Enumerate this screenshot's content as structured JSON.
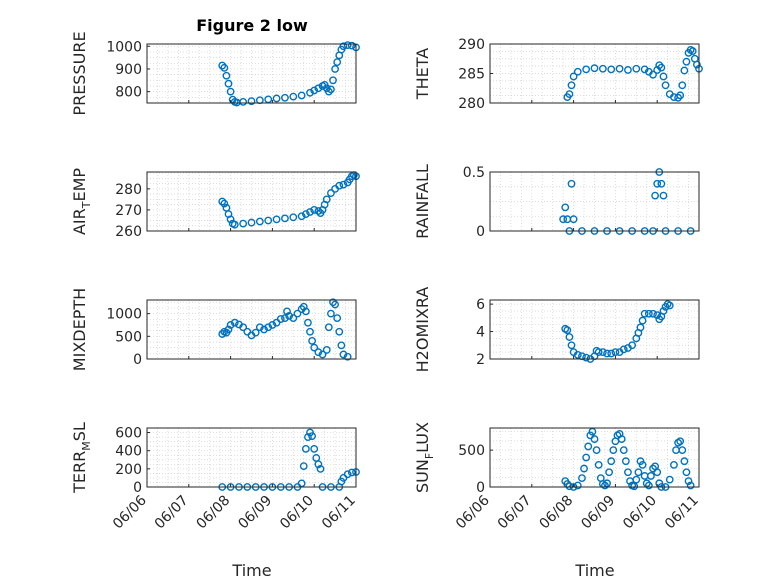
{
  "figure_title": "Figure 2 low",
  "x_tick_labels": [
    "06/06",
    "06/07",
    "06/08",
    "06/09",
    "06/10",
    "06/11"
  ],
  "x_label": "Time",
  "marker_color": "#0072BD",
  "chart_data": [
    {
      "type": "scatter",
      "id": "pressure",
      "ylabel": "PRESSURE",
      "yticks": [
        800,
        900,
        1000
      ],
      "ylim": [
        750,
        1010
      ],
      "xlim": [
        "06/06",
        "06/11"
      ],
      "grid": true,
      "points": [
        [
          1.8,
          915
        ],
        [
          1.85,
          905
        ],
        [
          1.9,
          870
        ],
        [
          1.95,
          835
        ],
        [
          2.0,
          800
        ],
        [
          2.05,
          765
        ],
        [
          2.1,
          755
        ],
        [
          2.15,
          752
        ],
        [
          2.3,
          755
        ],
        [
          2.5,
          758
        ],
        [
          2.7,
          762
        ],
        [
          2.9,
          766
        ],
        [
          3.1,
          770
        ],
        [
          3.3,
          773
        ],
        [
          3.5,
          778
        ],
        [
          3.7,
          783
        ],
        [
          3.9,
          795
        ],
        [
          4.0,
          805
        ],
        [
          4.1,
          815
        ],
        [
          4.2,
          825
        ],
        [
          4.25,
          830
        ],
        [
          4.3,
          815
        ],
        [
          4.35,
          800
        ],
        [
          4.4,
          810
        ],
        [
          4.45,
          850
        ],
        [
          4.5,
          900
        ],
        [
          4.55,
          930
        ],
        [
          4.6,
          960
        ],
        [
          4.65,
          985
        ],
        [
          4.7,
          1000
        ],
        [
          4.8,
          1005
        ],
        [
          4.9,
          1003
        ],
        [
          5.0,
          995
        ],
        [
          5.05,
          990
        ],
        [
          5.1,
          988
        ]
      ]
    },
    {
      "type": "scatter",
      "id": "theta",
      "ylabel": "THETA",
      "yticks": [
        280,
        285,
        290
      ],
      "ylim": [
        280,
        290
      ],
      "xlim": [
        "06/06",
        "06/11"
      ],
      "grid": true,
      "points": [
        [
          1.85,
          281
        ],
        [
          1.9,
          281.5
        ],
        [
          1.95,
          283
        ],
        [
          2.0,
          284.5
        ],
        [
          2.1,
          285.3
        ],
        [
          2.3,
          285.7
        ],
        [
          2.5,
          285.9
        ],
        [
          2.7,
          285.8
        ],
        [
          2.9,
          285.7
        ],
        [
          3.1,
          285.8
        ],
        [
          3.3,
          285.6
        ],
        [
          3.5,
          285.8
        ],
        [
          3.7,
          285.7
        ],
        [
          3.8,
          285.3
        ],
        [
          3.9,
          284.8
        ],
        [
          4.0,
          285.6
        ],
        [
          4.05,
          286.4
        ],
        [
          4.1,
          286
        ],
        [
          4.15,
          284.5
        ],
        [
          4.2,
          283
        ],
        [
          4.3,
          281.5
        ],
        [
          4.4,
          281
        ],
        [
          4.5,
          280.9
        ],
        [
          4.55,
          281.3
        ],
        [
          4.6,
          283
        ],
        [
          4.65,
          285.5
        ],
        [
          4.7,
          287
        ],
        [
          4.75,
          288.5
        ],
        [
          4.8,
          289
        ],
        [
          4.85,
          288.8
        ],
        [
          4.9,
          287.5
        ],
        [
          4.95,
          286.5
        ],
        [
          5.0,
          285.8
        ]
      ]
    },
    {
      "type": "scatter",
      "id": "air_temp",
      "ylabel": "AIR_TEMP",
      "yticks": [
        260,
        270,
        280
      ],
      "ylim": [
        260,
        288
      ],
      "xlim": [
        "06/06",
        "06/11"
      ],
      "grid": true,
      "points": [
        [
          1.8,
          274
        ],
        [
          1.85,
          273
        ],
        [
          1.9,
          271
        ],
        [
          1.95,
          268
        ],
        [
          2.0,
          265.5
        ],
        [
          2.05,
          263.5
        ],
        [
          2.1,
          263
        ],
        [
          2.3,
          263.5
        ],
        [
          2.5,
          264
        ],
        [
          2.7,
          264.5
        ],
        [
          2.9,
          265
        ],
        [
          3.1,
          265.5
        ],
        [
          3.3,
          266
        ],
        [
          3.5,
          266.5
        ],
        [
          3.7,
          267
        ],
        [
          3.8,
          268
        ],
        [
          3.9,
          269
        ],
        [
          4.0,
          270
        ],
        [
          4.1,
          269.5
        ],
        [
          4.15,
          268.5
        ],
        [
          4.2,
          270
        ],
        [
          4.25,
          272.5
        ],
        [
          4.3,
          275
        ],
        [
          4.4,
          278
        ],
        [
          4.5,
          280
        ],
        [
          4.6,
          281.5
        ],
        [
          4.7,
          282
        ],
        [
          4.8,
          283
        ],
        [
          4.85,
          284.5
        ],
        [
          4.9,
          286
        ],
        [
          4.95,
          286.5
        ],
        [
          5.0,
          286
        ],
        [
          5.05,
          285
        ]
      ]
    },
    {
      "type": "scatter",
      "id": "rainfall",
      "ylabel": "RAINFALL",
      "yticks": [
        0,
        0.5
      ],
      "ylim": [
        0,
        0.5
      ],
      "xlim": [
        "06/06",
        "06/11"
      ],
      "grid": true,
      "points": [
        [
          1.75,
          0.1
        ],
        [
          1.8,
          0.2
        ],
        [
          1.85,
          0.1
        ],
        [
          1.9,
          0
        ],
        [
          1.95,
          0.4
        ],
        [
          2.0,
          0.1
        ],
        [
          2.2,
          0
        ],
        [
          2.5,
          0
        ],
        [
          2.8,
          0
        ],
        [
          3.1,
          0
        ],
        [
          3.4,
          0
        ],
        [
          3.7,
          0
        ],
        [
          3.9,
          0
        ],
        [
          3.95,
          0.3
        ],
        [
          4.0,
          0.4
        ],
        [
          4.05,
          0.5
        ],
        [
          4.1,
          0.4
        ],
        [
          4.15,
          0.3
        ],
        [
          4.2,
          0
        ],
        [
          4.5,
          0
        ],
        [
          4.8,
          0
        ],
        [
          5.1,
          0
        ]
      ]
    },
    {
      "type": "scatter",
      "id": "mixdepth",
      "ylabel": "MIXDEPTH",
      "yticks": [
        0,
        500,
        1000
      ],
      "ylim": [
        0,
        1300
      ],
      "xlim": [
        "06/06",
        "06/11"
      ],
      "grid": true,
      "points": [
        [
          1.8,
          550
        ],
        [
          1.85,
          600
        ],
        [
          1.9,
          580
        ],
        [
          1.95,
          650
        ],
        [
          2.0,
          750
        ],
        [
          2.1,
          800
        ],
        [
          2.2,
          760
        ],
        [
          2.3,
          700
        ],
        [
          2.4,
          600
        ],
        [
          2.5,
          520
        ],
        [
          2.6,
          580
        ],
        [
          2.7,
          700
        ],
        [
          2.8,
          650
        ],
        [
          2.9,
          700
        ],
        [
          3.0,
          750
        ],
        [
          3.1,
          800
        ],
        [
          3.2,
          880
        ],
        [
          3.3,
          900
        ],
        [
          3.35,
          1050
        ],
        [
          3.4,
          950
        ],
        [
          3.5,
          900
        ],
        [
          3.6,
          1000
        ],
        [
          3.7,
          1100
        ],
        [
          3.75,
          1150
        ],
        [
          3.8,
          1050
        ],
        [
          3.85,
          800
        ],
        [
          3.9,
          600
        ],
        [
          3.95,
          400
        ],
        [
          4.0,
          250
        ],
        [
          4.1,
          150
        ],
        [
          4.2,
          100
        ],
        [
          4.3,
          200
        ],
        [
          4.35,
          700
        ],
        [
          4.4,
          1000
        ],
        [
          4.45,
          1250
        ],
        [
          4.5,
          1200
        ],
        [
          4.55,
          900
        ],
        [
          4.6,
          600
        ],
        [
          4.65,
          300
        ],
        [
          4.7,
          100
        ],
        [
          4.8,
          50
        ]
      ]
    },
    {
      "type": "scatter",
      "id": "h2omixra",
      "ylabel": "H2OMIXRA",
      "yticks": [
        2,
        4,
        6
      ],
      "ylim": [
        2,
        6.3
      ],
      "xlim": [
        "06/06",
        "06/11"
      ],
      "grid": true,
      "points": [
        [
          1.8,
          4.2
        ],
        [
          1.85,
          4.1
        ],
        [
          1.9,
          3.6
        ],
        [
          1.95,
          3.0
        ],
        [
          2.0,
          2.5
        ],
        [
          2.1,
          2.3
        ],
        [
          2.2,
          2.2
        ],
        [
          2.3,
          2.1
        ],
        [
          2.4,
          2.0
        ],
        [
          2.5,
          2.2
        ],
        [
          2.55,
          2.6
        ],
        [
          2.6,
          2.5
        ],
        [
          2.7,
          2.5
        ],
        [
          2.8,
          2.4
        ],
        [
          2.9,
          2.4
        ],
        [
          3.0,
          2.5
        ],
        [
          3.1,
          2.5
        ],
        [
          3.2,
          2.7
        ],
        [
          3.3,
          2.8
        ],
        [
          3.4,
          3.0
        ],
        [
          3.5,
          3.5
        ],
        [
          3.55,
          3.9
        ],
        [
          3.6,
          4.3
        ],
        [
          3.65,
          4.8
        ],
        [
          3.7,
          5.3
        ],
        [
          3.8,
          5.3
        ],
        [
          3.9,
          5.3
        ],
        [
          4.0,
          5.2
        ],
        [
          4.05,
          4.9
        ],
        [
          4.1,
          5.1
        ],
        [
          4.15,
          5.5
        ],
        [
          4.2,
          5.8
        ],
        [
          4.25,
          6.0
        ],
        [
          4.3,
          5.9
        ]
      ]
    },
    {
      "type": "scatter",
      "id": "terr_msl",
      "ylabel": "TERR_MSL",
      "yticks": [
        0,
        200,
        400,
        600
      ],
      "ylim": [
        0,
        650
      ],
      "xlim": [
        "06/06",
        "06/11"
      ],
      "grid": true,
      "points": [
        [
          1.8,
          0
        ],
        [
          2.0,
          0
        ],
        [
          2.2,
          0
        ],
        [
          2.4,
          0
        ],
        [
          2.6,
          0
        ],
        [
          2.8,
          0
        ],
        [
          3.0,
          0
        ],
        [
          3.2,
          0
        ],
        [
          3.4,
          0
        ],
        [
          3.6,
          0
        ],
        [
          3.7,
          40
        ],
        [
          3.75,
          230
        ],
        [
          3.8,
          420
        ],
        [
          3.85,
          550
        ],
        [
          3.9,
          600
        ],
        [
          3.95,
          560
        ],
        [
          4.0,
          420
        ],
        [
          4.05,
          320
        ],
        [
          4.1,
          250
        ],
        [
          4.15,
          200
        ],
        [
          4.2,
          0
        ],
        [
          4.4,
          0
        ],
        [
          4.6,
          0
        ],
        [
          4.65,
          60
        ],
        [
          4.7,
          100
        ],
        [
          4.8,
          140
        ],
        [
          4.9,
          160
        ],
        [
          5.0,
          165
        ]
      ]
    },
    {
      "type": "scatter",
      "id": "sun_flux",
      "ylabel": "SUN_FLUX",
      "yticks": [
        0,
        500
      ],
      "ylim": [
        0,
        800
      ],
      "xlim": [
        "06/06",
        "06/11"
      ],
      "grid": true,
      "points": [
        [
          1.8,
          80
        ],
        [
          1.85,
          40
        ],
        [
          1.9,
          10
        ],
        [
          2.0,
          0
        ],
        [
          2.1,
          20
        ],
        [
          2.2,
          120
        ],
        [
          2.25,
          250
        ],
        [
          2.3,
          400
        ],
        [
          2.35,
          550
        ],
        [
          2.4,
          700
        ],
        [
          2.45,
          750
        ],
        [
          2.5,
          650
        ],
        [
          2.55,
          500
        ],
        [
          2.6,
          300
        ],
        [
          2.65,
          120
        ],
        [
          2.7,
          40
        ],
        [
          2.75,
          20
        ],
        [
          2.8,
          50
        ],
        [
          2.85,
          200
        ],
        [
          2.9,
          350
        ],
        [
          2.95,
          500
        ],
        [
          3.0,
          620
        ],
        [
          3.05,
          700
        ],
        [
          3.1,
          720
        ],
        [
          3.15,
          650
        ],
        [
          3.2,
          500
        ],
        [
          3.25,
          350
        ],
        [
          3.3,
          200
        ],
        [
          3.35,
          80
        ],
        [
          3.4,
          20
        ],
        [
          3.45,
          10
        ],
        [
          3.5,
          100
        ],
        [
          3.55,
          200
        ],
        [
          3.6,
          350
        ],
        [
          3.65,
          300
        ],
        [
          3.7,
          150
        ],
        [
          3.75,
          50
        ],
        [
          3.8,
          20
        ],
        [
          3.85,
          150
        ],
        [
          3.9,
          250
        ],
        [
          3.95,
          280
        ],
        [
          4.0,
          200
        ],
        [
          4.05,
          50
        ],
        [
          4.1,
          0
        ],
        [
          4.2,
          0
        ],
        [
          4.3,
          100
        ],
        [
          4.4,
          300
        ],
        [
          4.45,
          500
        ],
        [
          4.5,
          600
        ],
        [
          4.55,
          620
        ],
        [
          4.6,
          500
        ],
        [
          4.65,
          350
        ],
        [
          4.7,
          200
        ],
        [
          4.75,
          80
        ],
        [
          4.8,
          20
        ]
      ]
    }
  ]
}
